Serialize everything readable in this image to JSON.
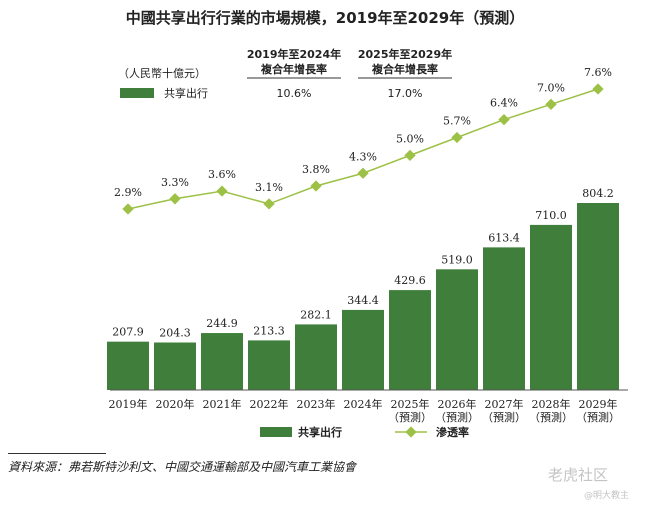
{
  "chart_data": {
    "type": "bar",
    "title": "中國共享出行行業的市場規模，2019年至2029年（預測）",
    "unit_label": "（人民幣十億元）",
    "categories": [
      [
        "2019年"
      ],
      [
        "2020年"
      ],
      [
        "2021年"
      ],
      [
        "2022年"
      ],
      [
        "2023年"
      ],
      [
        "2024年"
      ],
      [
        "2025年",
        "（預測）"
      ],
      [
        "2026年",
        "（預測）"
      ],
      [
        "2027年",
        "（預測）"
      ],
      [
        "2028年",
        "（預測）"
      ],
      [
        "2029年",
        "（預測）"
      ]
    ],
    "series": [
      {
        "name": "共享出行",
        "type": "bar",
        "color": "#3f7f3b",
        "values": [
          207.9,
          204.3,
          244.9,
          213.3,
          282.1,
          344.4,
          429.6,
          519.0,
          613.4,
          710.0,
          804.2
        ],
        "labels": [
          "207.9",
          "204.3",
          "244.9",
          "213.3",
          "282.1",
          "344.4",
          "429.6",
          "519.0",
          "613.4",
          "710.0",
          "804.2"
        ]
      },
      {
        "name": "滲透率",
        "type": "line",
        "color": "#9dc146",
        "values": [
          2.9,
          3.3,
          3.6,
          3.1,
          3.8,
          4.3,
          5.0,
          5.7,
          6.4,
          7.0,
          7.6
        ],
        "labels": [
          "2.9%",
          "3.3%",
          "3.6%",
          "3.1%",
          "3.8%",
          "4.3%",
          "5.0%",
          "5.7%",
          "6.4%",
          "7.0%",
          "7.6%"
        ]
      }
    ],
    "growth_table": {
      "columns": [
        {
          "header": [
            "2019年至2024年",
            "複合年增長率"
          ],
          "value": "10.6%"
        },
        {
          "header": [
            "2025年至2029年",
            "複合年增長率"
          ],
          "value": "17.0%"
        }
      ]
    },
    "top_legend": {
      "label": "共享出行",
      "color": "#3f7f3b"
    },
    "legend": {
      "position": "bottom-center"
    },
    "grid": false
  },
  "source": "資料來源：弗若斯特沙利文、中國交通運輸部及中國汽車工業協會",
  "watermark": {
    "brand": "老虎社区",
    "author": "@明大教主"
  }
}
